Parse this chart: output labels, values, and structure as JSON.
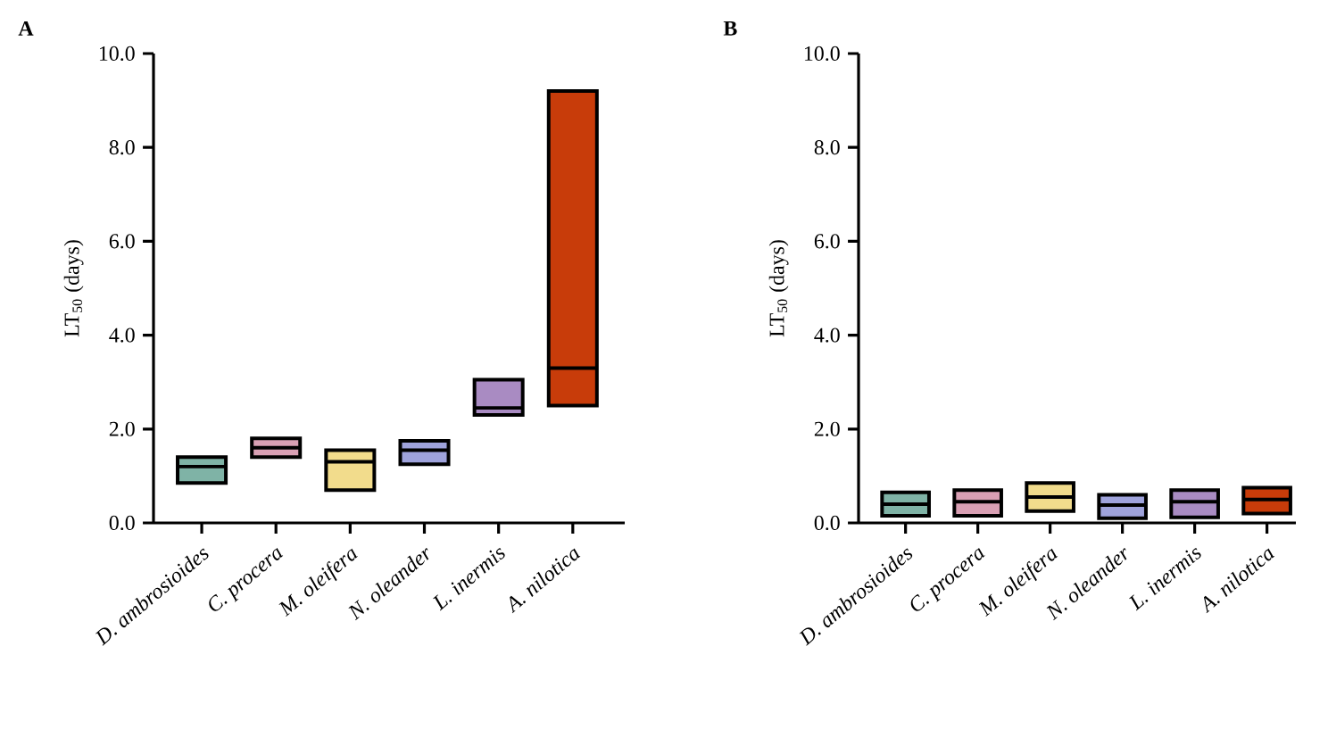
{
  "chart_data": [
    {
      "type": "box",
      "title": "A",
      "ylabel": "LT$_{50}$ (days)",
      "categories": [
        "D. ambrosioides",
        "C. procera",
        "M. oleifera",
        "N. oleander",
        "L. inermis",
        "A. nilotica"
      ],
      "boxes": [
        {
          "low": 0.85,
          "q1": 0.85,
          "median": 1.2,
          "q3": 1.4,
          "high": 1.4
        },
        {
          "low": 1.4,
          "q1": 1.4,
          "median": 1.6,
          "q3": 1.8,
          "high": 1.8
        },
        {
          "low": 0.7,
          "q1": 0.7,
          "median": 1.3,
          "q3": 1.55,
          "high": 1.55
        },
        {
          "low": 1.25,
          "q1": 1.25,
          "median": 1.55,
          "q3": 1.75,
          "high": 1.75
        },
        {
          "low": 2.3,
          "q1": 2.3,
          "median": 2.45,
          "q3": 3.05,
          "high": 3.05
        },
        {
          "low": 2.5,
          "q1": 2.5,
          "median": 3.3,
          "q3": 9.2,
          "high": 9.2
        }
      ],
      "colors": [
        "#7fb3a6",
        "#d9a0b4",
        "#f2dc8c",
        "#9fa3dc",
        "#a98bc2",
        "#c83c0a"
      ],
      "ylim": [
        0,
        10
      ],
      "yticks": [
        {
          "value": 0,
          "label": "0.0"
        },
        {
          "value": 2,
          "label": "2.0"
        },
        {
          "value": 4,
          "label": "4.0"
        },
        {
          "value": 6,
          "label": "6.0"
        },
        {
          "value": 8,
          "label": "8.0"
        },
        {
          "value": 10,
          "label": "10.0"
        }
      ]
    },
    {
      "type": "box",
      "title": "B",
      "ylabel": "LT$_{50}$ (days)",
      "categories": [
        "D. ambrosioides",
        "C. procera",
        "M. oleifera",
        "N. oleander",
        "L. inermis",
        "A. nilotica"
      ],
      "boxes": [
        {
          "low": 0.15,
          "q1": 0.15,
          "median": 0.4,
          "q3": 0.65,
          "high": 0.65
        },
        {
          "low": 0.15,
          "q1": 0.15,
          "median": 0.45,
          "q3": 0.7,
          "high": 0.7
        },
        {
          "low": 0.25,
          "q1": 0.25,
          "median": 0.55,
          "q3": 0.85,
          "high": 0.85
        },
        {
          "low": 0.1,
          "q1": 0.1,
          "median": 0.38,
          "q3": 0.6,
          "high": 0.6
        },
        {
          "low": 0.12,
          "q1": 0.12,
          "median": 0.45,
          "q3": 0.7,
          "high": 0.7
        },
        {
          "low": 0.2,
          "q1": 0.2,
          "median": 0.5,
          "q3": 0.75,
          "high": 0.75
        }
      ],
      "colors": [
        "#7fb3a6",
        "#d9a0b4",
        "#f2dc8c",
        "#9fa3dc",
        "#a98bc2",
        "#c83c0a"
      ],
      "ylim": [
        0,
        10
      ],
      "yticks": [
        {
          "value": 0,
          "label": "0.0"
        },
        {
          "value": 2,
          "label": "2.0"
        },
        {
          "value": 4,
          "label": "4.0"
        },
        {
          "value": 6,
          "label": "6.0"
        },
        {
          "value": 8,
          "label": "8.0"
        },
        {
          "value": 10,
          "label": "10.0"
        }
      ]
    }
  ]
}
